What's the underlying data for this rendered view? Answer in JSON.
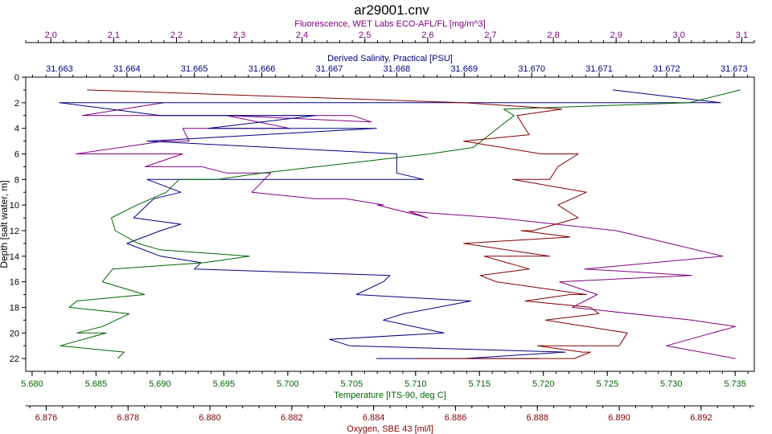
{
  "chart_data": {
    "type": "line",
    "title": "ar29001.cnv",
    "grid": false,
    "y_axis": {
      "label": "Depth [salt water, m]",
      "range": [
        0,
        23
      ],
      "inverted": true,
      "ticks": [
        "0",
        "2",
        "4",
        "6",
        "8",
        "10",
        "12",
        "14",
        "16",
        "18",
        "20",
        "22"
      ]
    },
    "x_axes": [
      {
        "key": "fluorescence",
        "label": "Fluorescence, WET Labs ECO-AFL/FL [mg/m^3]",
        "position": "top",
        "color": "#800080",
        "range": [
          1.96,
          3.12
        ],
        "ticks": [
          "2.0",
          "2.1",
          "2.2",
          "2.3",
          "2.4",
          "2.5",
          "2.6",
          "2.7",
          "2.8",
          "2.9",
          "3.0",
          "3.1"
        ]
      },
      {
        "key": "salinity",
        "label": "Derived Salinity, Practical [PSU]",
        "position": "top",
        "color": "#000080",
        "range": [
          31.6625,
          31.6733
        ],
        "ticks": [
          "31.663",
          "31.664",
          "31.665",
          "31.666",
          "31.667",
          "31.668",
          "31.669",
          "31.670",
          "31.671",
          "31.672",
          "31.673"
        ]
      },
      {
        "key": "temperature",
        "label": "Temperature [ITS-90, deg C]",
        "position": "bottom",
        "color": "#006400",
        "range": [
          5.6795,
          5.7365
        ],
        "ticks": [
          "5.680",
          "5.685",
          "5.690",
          "5.695",
          "5.700",
          "5.705",
          "5.710",
          "5.715",
          "5.720",
          "5.725",
          "5.730",
          "5.735"
        ]
      },
      {
        "key": "oxygen",
        "label": "Oxygen, SBE 43 [ml/l]",
        "position": "bottom",
        "color": "#800000",
        "range": [
          6.8755,
          6.8933
        ],
        "ticks": [
          "6.876",
          "6.878",
          "6.880",
          "6.882",
          "6.884",
          "6.886",
          "6.888",
          "6.890",
          "6.892"
        ]
      }
    ],
    "series": [
      {
        "axis": "fluorescence",
        "color": "#800080",
        "x": [
          2.18,
          2.05,
          2.48,
          2.51,
          2.28,
          2.38,
          2.21,
          2.22,
          2.18,
          2.04,
          2.21,
          2.15,
          2.24,
          2.28,
          2.35,
          2.32,
          2.42,
          2.47,
          2.53,
          2.52,
          2.6,
          2.57,
          2.71,
          2.9,
          3.07,
          2.85,
          3.02,
          2.81,
          2.87,
          2.83,
          3.02,
          3.09,
          2.98,
          3.09
        ],
        "y": [
          2,
          3,
          3,
          3.5,
          3,
          4,
          4,
          5,
          5,
          6,
          6,
          7,
          7,
          7.5,
          7.5,
          9,
          9.5,
          9.5,
          10,
          10,
          11,
          10.5,
          11,
          12,
          14,
          15,
          15.5,
          16,
          17,
          18,
          19,
          19.5,
          21,
          22
        ]
      },
      {
        "axis": "salinity",
        "color": "#000080",
        "x": [
          31.6712,
          31.6728,
          31.663,
          31.6645,
          31.6668,
          31.6652,
          31.6677,
          31.6643,
          31.668,
          31.668,
          31.668,
          31.6684,
          31.6643,
          31.6648,
          31.6644,
          31.6641,
          31.6648,
          31.6645,
          31.664,
          31.6645,
          31.6651,
          31.665,
          31.6679,
          31.6678,
          31.6674,
          31.6691,
          31.6681,
          31.6678,
          31.6687,
          31.667,
          31.6673,
          31.6705,
          31.669,
          31.6701,
          31.6678,
          31.6677,
          31.6681,
          31.6701,
          31.6692
        ],
        "y": [
          1,
          2,
          2,
          3,
          3,
          4,
          4,
          5,
          6,
          7,
          7.5,
          8,
          8,
          9,
          9.5,
          11,
          11.5,
          12,
          13,
          14,
          14.5,
          15,
          15.5,
          16,
          17,
          17.5,
          18.5,
          19,
          20,
          20.5,
          21,
          21.5,
          22,
          22,
          22,
          22,
          22,
          22,
          22
        ]
      },
      {
        "axis": "temperature",
        "color": "#006400",
        "x": [
          5.7354,
          5.7314,
          5.7169,
          5.7177,
          5.7145,
          5.7111,
          5.698,
          5.6945,
          5.6915,
          5.6905,
          5.6882,
          5.6862,
          5.6865,
          5.6883,
          5.69,
          5.697,
          5.6935,
          5.6863,
          5.6855,
          5.6888,
          5.6835,
          5.6829,
          5.6876,
          5.6855,
          5.6835,
          5.6858,
          5.6822,
          5.6872,
          5.6867
        ],
        "y": [
          1,
          2,
          2.5,
          3,
          5.5,
          6,
          7.5,
          8,
          8,
          9,
          10,
          11,
          12,
          13,
          13.5,
          14,
          14.5,
          15,
          16,
          17,
          17.5,
          18,
          18.5,
          19.5,
          20,
          20,
          21,
          21.5,
          22
        ]
      },
      {
        "axis": "oxygen",
        "color": "#800000",
        "x": [
          6.877,
          6.8862,
          6.8886,
          6.8875,
          6.8878,
          6.8862,
          6.8881,
          6.889,
          6.8885,
          6.8883,
          6.8874,
          6.8892,
          6.8885,
          6.889,
          6.8879,
          6.8876,
          6.8888,
          6.8862,
          6.8883,
          6.8867,
          6.8878,
          6.8866,
          6.887,
          6.8892,
          6.8888,
          6.8877,
          6.8893,
          6.8895,
          6.8882,
          6.8902,
          6.89,
          6.888,
          6.8891,
          6.8893,
          6.8889,
          6.8875,
          6.887,
          6.885
        ],
        "y": [
          1,
          2,
          2.5,
          3,
          4.5,
          5,
          6,
          6,
          7,
          8,
          8,
          9,
          10,
          11,
          12,
          12,
          12.5,
          13,
          14,
          14,
          15,
          15.5,
          16,
          17,
          17,
          17.5,
          18,
          18.5,
          19,
          20,
          21,
          21,
          21.5,
          21.5,
          22,
          22,
          22,
          22
        ]
      }
    ]
  }
}
